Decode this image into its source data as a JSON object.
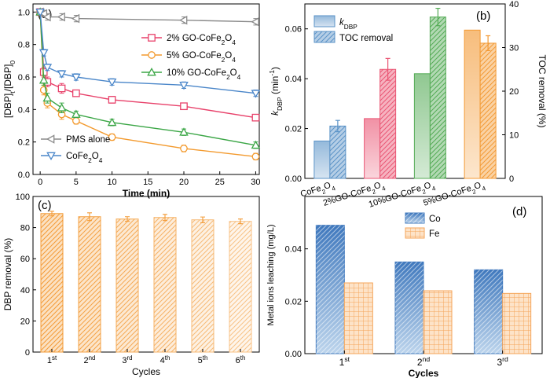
{
  "chart_data": [
    {
      "panel": "(a)",
      "type": "line",
      "xlabel": "Time (min)",
      "ylabel": "[DBP]t/[DBP]0",
      "xlim": [
        -1,
        30.5
      ],
      "ylim": [
        0,
        1.05
      ],
      "xticks": [
        "0",
        "5",
        "10",
        "15",
        "20",
        "25",
        "30"
      ],
      "yticks": [
        "0.0",
        "0.2",
        "0.4",
        "0.6",
        "0.8",
        "1.0"
      ],
      "legend_position": "right / lower-left",
      "series": [
        {
          "name": "2% GO-CoFe2O4",
          "color": "#e8416a",
          "marker": "square",
          "x": [
            0,
            0.5,
            1,
            3,
            5,
            10,
            20,
            30
          ],
          "y": [
            1.0,
            0.63,
            0.57,
            0.53,
            0.5,
            0.46,
            0.42,
            0.35
          ],
          "err": [
            0,
            0.03,
            0.03,
            0.03,
            0.02,
            0.02,
            0.02,
            0.02
          ]
        },
        {
          "name": "5% GO-CoFe2O4",
          "color": "#f39a2e",
          "marker": "circle",
          "x": [
            0,
            0.5,
            1,
            3,
            5,
            10,
            20,
            30
          ],
          "y": [
            1.0,
            0.52,
            0.44,
            0.37,
            0.33,
            0.23,
            0.16,
            0.11
          ],
          "err": [
            0,
            0.03,
            0.03,
            0.03,
            0.02,
            0.02,
            0.02,
            0.02
          ]
        },
        {
          "name": "10% GO-CoFe2O4",
          "color": "#3ba646",
          "marker": "triangle-up",
          "x": [
            0,
            0.5,
            1,
            3,
            5,
            10,
            20,
            30
          ],
          "y": [
            1.0,
            0.58,
            0.47,
            0.41,
            0.37,
            0.32,
            0.26,
            0.18
          ],
          "err": [
            0,
            0.03,
            0.03,
            0.03,
            0.02,
            0.02,
            0.02,
            0.02
          ]
        },
        {
          "name": "PMS alone",
          "color": "#8a8a8a",
          "marker": "triangle-left",
          "x": [
            0,
            0.5,
            1,
            3,
            5,
            20,
            30
          ],
          "y": [
            1.0,
            0.99,
            0.97,
            0.97,
            0.96,
            0.95,
            0.94
          ],
          "err": [
            0,
            0.02,
            0.02,
            0.02,
            0.02,
            0.02,
            0.02
          ]
        },
        {
          "name": "CoFe2O4",
          "color": "#4a86c9",
          "marker": "triangle-down",
          "x": [
            0,
            0.5,
            1,
            3,
            5,
            10,
            20,
            30
          ],
          "y": [
            1.0,
            0.75,
            0.66,
            0.62,
            0.6,
            0.57,
            0.55,
            0.5
          ],
          "err": [
            0,
            0.02,
            0.02,
            0.02,
            0.02,
            0.02,
            0.02,
            0.02
          ]
        }
      ]
    },
    {
      "panel": "(b)",
      "type": "bar",
      "ylabel": "kDBP (min-1)",
      "ylabel_right": "TOC removal (%)",
      "ylim": [
        0,
        0.07
      ],
      "ylim_right": [
        0,
        40
      ],
      "yticks": [
        "0.00",
        "0.02",
        "0.04",
        "0.06"
      ],
      "yticks_right": [
        "0",
        "10",
        "20",
        "30",
        "40"
      ],
      "legend": [
        "k_DBP",
        "TOC removal"
      ],
      "legend_position": "top-left",
      "categories": [
        "CoFe2O4",
        "2%GO-CoFe2O4",
        "10%GO-CoFe2O4",
        "5%GO-CoFe2O4"
      ],
      "colors": [
        "#5b93c7",
        "#ea5674",
        "#54ab55",
        "#f39a35"
      ],
      "kDBP": [
        0.015,
        0.024,
        0.042,
        0.0595
      ],
      "TOC_removal": [
        12,
        25,
        37,
        31
      ],
      "TOC_err": [
        1.3,
        2.5,
        2.0,
        1.7
      ]
    },
    {
      "panel": "(c)",
      "type": "bar",
      "xlabel": "Cycles",
      "ylabel": "DBP removal (%)",
      "ylim": [
        0,
        100
      ],
      "yticks": [
        "0",
        "20",
        "40",
        "60",
        "80",
        "100"
      ],
      "color": "#f39a35",
      "categories": [
        {
          "num": "1",
          "sup": "st"
        },
        {
          "num": "2",
          "sup": "nd"
        },
        {
          "num": "3",
          "sup": "rd"
        },
        {
          "num": "4",
          "sup": "th"
        },
        {
          "num": "5",
          "sup": "th"
        },
        {
          "num": "6",
          "sup": "th"
        }
      ],
      "values": [
        89,
        87,
        85.5,
        86.5,
        85,
        84
      ],
      "err": [
        1.5,
        2.5,
        1.5,
        2.0,
        1.8,
        1.5
      ]
    },
    {
      "panel": "(d)",
      "type": "bar",
      "xlabel": "Cycles",
      "ylabel": "Metal ions leaching (mg/L)",
      "ylim": [
        0,
        0.06
      ],
      "yticks": [
        "0.00",
        "0.02",
        "0.04"
      ],
      "legend_position": "top-center",
      "categories": [
        {
          "num": "1",
          "sup": "st"
        },
        {
          "num": "2",
          "sup": "nd"
        },
        {
          "num": "3",
          "sup": "rd"
        }
      ],
      "series": [
        {
          "name": "Co",
          "color": "#4f86c5",
          "values": [
            0.049,
            0.035,
            0.032
          ]
        },
        {
          "name": "Fe",
          "color": "#f5a55a",
          "values": [
            0.027,
            0.024,
            0.023
          ]
        }
      ]
    }
  ]
}
